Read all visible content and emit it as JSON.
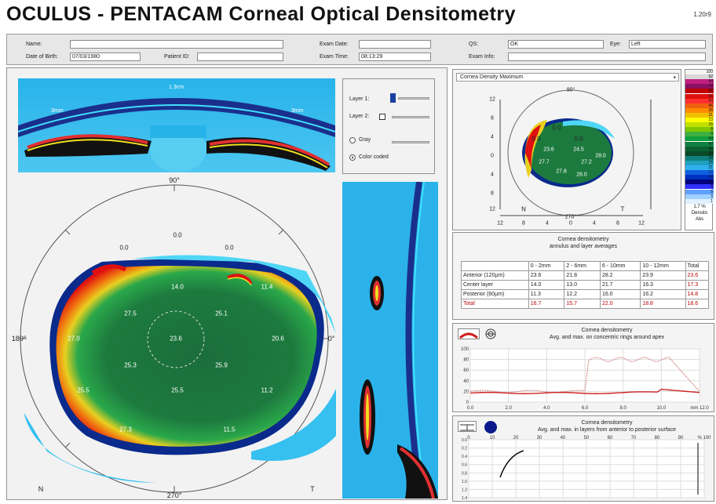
{
  "app": {
    "title": "OCULUS - PENTACAM  Corneal Optical Densitometry",
    "version": "1.20r9"
  },
  "header": {
    "name_label": "Name:",
    "name_value": "",
    "dob_label": "Date of Birth:",
    "dob_value": "07/03/1980",
    "patient_id_label": "Patient ID:",
    "patient_id_value": "",
    "exam_date_label": "Exam Date:",
    "exam_date_value": "",
    "exam_time_label": "Exam Time:",
    "exam_time_value": "08:13:29",
    "qs_label": "QS:",
    "qs_value": "OK",
    "eye_label": "Eye:",
    "eye_value": "Left",
    "exam_info_label": "Exam Info:",
    "exam_info_value": ""
  },
  "scheimpflug": {
    "label_center": "1.3cm",
    "label_left": "3mm",
    "label_right": "3mm"
  },
  "layer_controls": {
    "layer1": "Layer 1:",
    "layer2": "Layer 2:",
    "gray": "Gray",
    "color_coded": "Color coded"
  },
  "main_map": {
    "angle_top": "90°",
    "angle_bottom": "270°",
    "angle_left": "180°",
    "angle_right": "0°",
    "corner_left": "N",
    "corner_right": "T",
    "values": [
      "0.0",
      "0.0",
      "0.0",
      "14.0",
      "11.4",
      "27.5",
      "25.1",
      "27.0",
      "23.6",
      "20.6",
      "25.3",
      "25.9",
      "25.5",
      "25.5",
      "11.2",
      "27.3",
      "11.5"
    ]
  },
  "small_map": {
    "dropdown": "Cornea Density Maximum",
    "angle_top": "90°",
    "angle_bottom": "270°",
    "corner_left": "N",
    "corner_right": "T",
    "values": [
      "0.0",
      "0.0",
      "0.0",
      "23.6",
      "24.5",
      "28.0",
      "27.7",
      "27.2",
      "27.8",
      "26.0"
    ],
    "y_ticks": [
      "12",
      "8",
      "4",
      "0",
      "4",
      "8",
      "12"
    ],
    "x_ticks": [
      "12",
      "8",
      "4",
      "0",
      "4",
      "8",
      "12"
    ]
  },
  "legend": {
    "values": [
      "100",
      "92",
      "84",
      "77",
      "69",
      "61",
      "54",
      "46",
      "38",
      "31",
      "23",
      "15",
      "8",
      "0",
      "54",
      "47",
      "40",
      "35",
      "30",
      "25",
      "21",
      "17",
      "14",
      "11",
      "8",
      "5",
      "3",
      "1"
    ],
    "footer_value": "1.7 %",
    "footer_label": "Densito",
    "footer_sub": "Abs"
  },
  "density_table": {
    "title": "Cornea densitometry",
    "subtitle": "annulus and layer averages",
    "columns": [
      "",
      "0 - 2mm",
      "2 - 6mm",
      "6 - 10mm",
      "10 - 12mm",
      "Total"
    ],
    "rows": [
      {
        "label": "Anterior (120µm)",
        "cells": [
          "23.6",
          "21.8",
          "28.2",
          "23.9",
          "23.6"
        ]
      },
      {
        "label": "Center layer",
        "cells": [
          "14.0",
          "13.0",
          "21.7",
          "16.3",
          "17.3"
        ]
      },
      {
        "label": "Posterior (60µm)",
        "cells": [
          "11.3",
          "12.2",
          "16.0",
          "16.2",
          "14.8"
        ]
      },
      {
        "label": "Total",
        "cells": [
          "16.7",
          "15.7",
          "22.0",
          "18.8",
          "18.6"
        ]
      }
    ]
  },
  "chart1": {
    "title": "Cornea densitometry",
    "subtitle": "Avg. and max. on concentric rings around apex",
    "ylim": [
      0,
      100
    ],
    "xlim": [
      0,
      12
    ],
    "y_ticks": [
      "100",
      "80",
      "60",
      "40",
      "20",
      "0"
    ],
    "x_ticks": [
      "0.0",
      "2.0",
      "4.0",
      "6.0",
      "8.0",
      "10.0",
      "mm 12.0"
    ]
  },
  "chart2": {
    "title": "Cornea densitometry",
    "subtitle": "Avg. and max. in layers from anterior to posterior surface",
    "x_ticks": [
      "0",
      "10",
      "20",
      "30",
      "40",
      "50",
      "60",
      "70",
      "80",
      "90",
      "% 100"
    ],
    "y_ticks": [
      "0.0",
      "0.2",
      "0.4",
      "0.6",
      "0.8",
      "1.0",
      "1.2",
      "1.4"
    ]
  },
  "colors": {
    "red_curve": "#cc2222",
    "max_curve": "#d08080",
    "accent_blue": "#1a3fa0"
  }
}
